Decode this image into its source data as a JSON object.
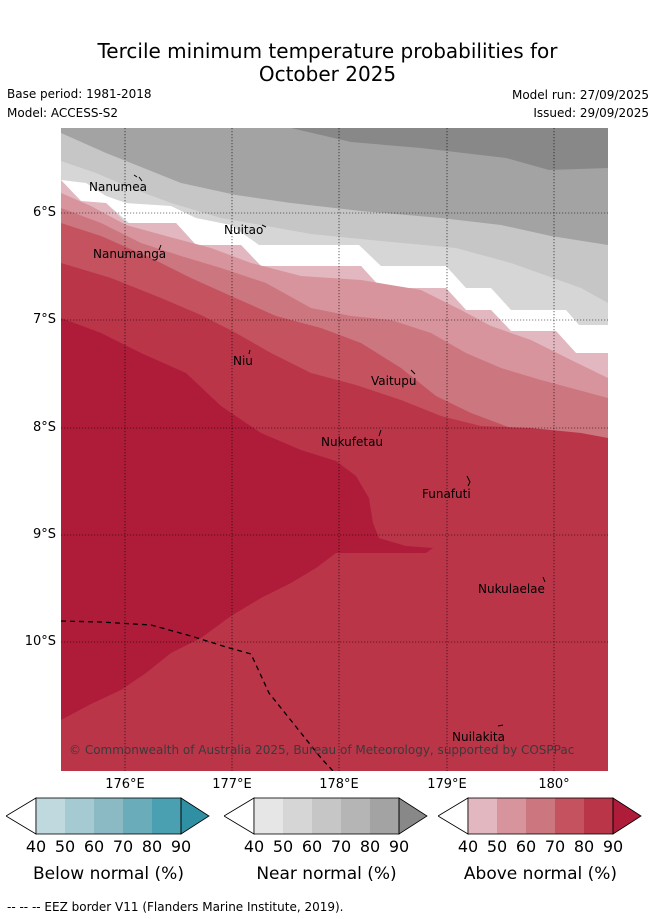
{
  "title": {
    "line1": "Tercile minimum temperature probabilities for",
    "line2": "October 2025"
  },
  "meta": {
    "base_period": "Base period: 1981-2018",
    "model": "Model: ACCESS-S2",
    "model_run": "Model run: 27/09/2025",
    "issued": "Issued: 29/09/2025"
  },
  "axes": {
    "y_ticks": [
      "6°S",
      "7°S",
      "8°S",
      "9°S",
      "10°S"
    ],
    "x_ticks": [
      "176°E",
      "177°E",
      "178°E",
      "179°E",
      "180°"
    ]
  },
  "places": [
    "Nanumea",
    "Nanumanga",
    "Nuitao",
    "Niu",
    "Vaitupu",
    "Nukufetau",
    "Funafuti",
    "Nukulaelae",
    "Nuilakita"
  ],
  "copyright": "© Commonwealth of Australia 2025, Bureau of Meteorology, supported by COSPPac",
  "colorbars": [
    {
      "label": "Below normal (%)",
      "ticks": [
        "40",
        "50",
        "60",
        "70",
        "80",
        "90"
      ],
      "colors": [
        "#ffffff",
        "#c0d9df",
        "#a6cad1",
        "#8bbac4",
        "#6aacb9",
        "#4aa0b0",
        "#2f8fa3"
      ]
    },
    {
      "label": "Near normal (%)",
      "ticks": [
        "40",
        "50",
        "60",
        "70",
        "80",
        "90"
      ],
      "colors": [
        "#ffffff",
        "#e6e6e6",
        "#d6d6d6",
        "#c6c6c6",
        "#b5b5b5",
        "#a3a3a3",
        "#888888"
      ]
    },
    {
      "label": "Above normal (%)",
      "ticks": [
        "40",
        "50",
        "60",
        "70",
        "80",
        "90"
      ],
      "colors": [
        "#ffffff",
        "#e2b7bf",
        "#d8949c",
        "#cc7680",
        "#c4535f",
        "#bb3549",
        "#ae1c3a"
      ]
    }
  ],
  "footer": "--  --  -- EEZ border V11 (Flanders Marine Institute, 2019).",
  "map_colors": {
    "near_90": "#888888",
    "near_80": "#a3a3a3",
    "near_70": "#c6c6c6",
    "near_60": "#d6d6d6",
    "white": "#ffffff",
    "above_50": "#e2b7bf",
    "above_60": "#d8949c",
    "above_70": "#cc7680",
    "above_80": "#c4535f",
    "above_85": "#bb3549",
    "above_90": "#ae1c3a"
  }
}
